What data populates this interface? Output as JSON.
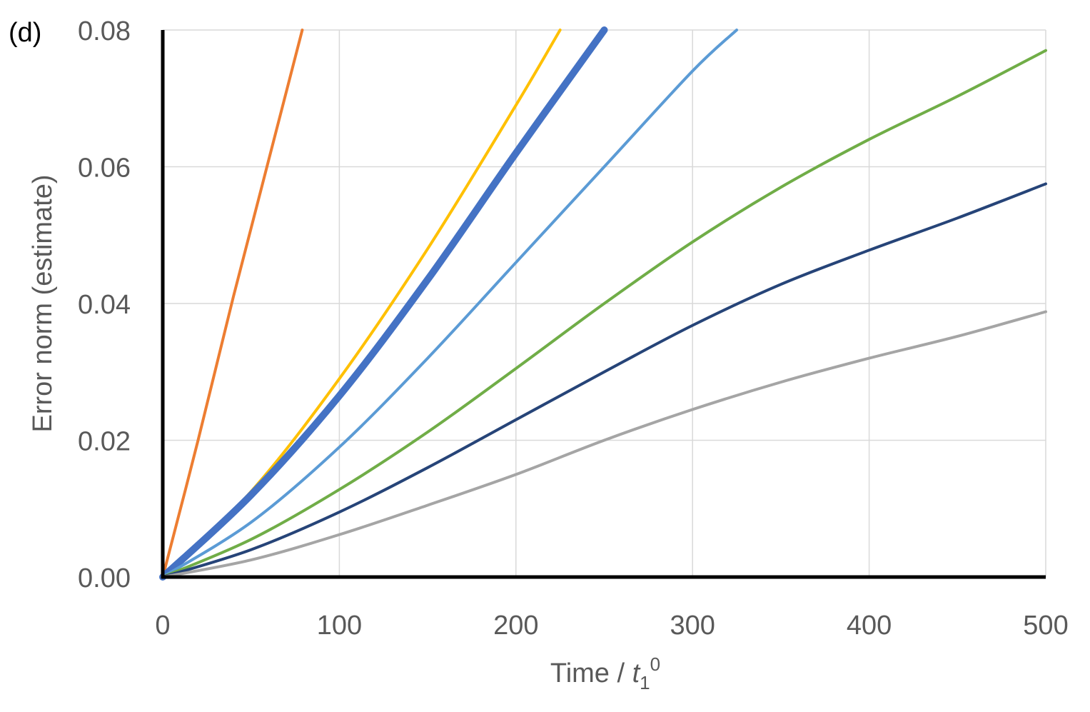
{
  "chart_data": {
    "type": "line",
    "panel_label": "(d)",
    "title": "",
    "xlabel_prefix": "Time / ",
    "xlabel_var": "t",
    "xlabel_sub": "1",
    "xlabel_sup": "0",
    "ylabel": "Error norm (estimate)",
    "xlim": [
      0,
      500
    ],
    "ylim": [
      0,
      0.08
    ],
    "xticks": [
      0,
      100,
      200,
      300,
      400,
      500
    ],
    "xtick_labels": [
      "0",
      "100",
      "200",
      "300",
      "400",
      "500"
    ],
    "yticks": [
      0,
      0.02,
      0.04,
      0.06,
      0.08
    ],
    "ytick_labels": [
      "0.00",
      "0.02",
      "0.04",
      "0.06",
      "0.08"
    ],
    "grid": true,
    "series": [
      {
        "name": "orange",
        "color": "#ED7D31",
        "x": [
          0,
          20,
          40,
          60,
          79
        ],
        "y": [
          0,
          0.02,
          0.041,
          0.061,
          0.08
        ]
      },
      {
        "name": "yellow",
        "color": "#FFC000",
        "x": [
          0,
          50,
          100,
          150,
          200,
          225
        ],
        "y": [
          0,
          0.0125,
          0.029,
          0.048,
          0.069,
          0.08
        ]
      },
      {
        "name": "blue-thick",
        "color": "#4472C4",
        "x": [
          0,
          50,
          100,
          150,
          200,
          250
        ],
        "y": [
          0,
          0.012,
          0.0265,
          0.0435,
          0.062,
          0.08
        ]
      },
      {
        "name": "light-blue",
        "color": "#5B9BD5",
        "x": [
          0,
          50,
          100,
          150,
          200,
          250,
          300,
          325
        ],
        "y": [
          0,
          0.008,
          0.019,
          0.032,
          0.046,
          0.06,
          0.074,
          0.08
        ]
      },
      {
        "name": "green",
        "color": "#70AD47",
        "x": [
          0,
          50,
          100,
          150,
          200,
          250,
          300,
          350,
          400,
          450,
          500
        ],
        "y": [
          0,
          0.0055,
          0.0128,
          0.0212,
          0.0305,
          0.04,
          0.049,
          0.057,
          0.064,
          0.0703,
          0.077
        ]
      },
      {
        "name": "dark-blue",
        "color": "#264478",
        "x": [
          0,
          50,
          100,
          150,
          200,
          250,
          300,
          350,
          400,
          450,
          500
        ],
        "y": [
          0,
          0.004,
          0.0095,
          0.016,
          0.023,
          0.03,
          0.0368,
          0.0428,
          0.0478,
          0.0525,
          0.0575
        ]
      },
      {
        "name": "gray",
        "color": "#A5A5A5",
        "x": [
          0,
          50,
          100,
          150,
          200,
          250,
          300,
          350,
          400,
          450,
          500
        ],
        "y": [
          0,
          0.0025,
          0.0062,
          0.0105,
          0.015,
          0.02,
          0.0245,
          0.0285,
          0.032,
          0.0352,
          0.0388
        ]
      }
    ]
  }
}
